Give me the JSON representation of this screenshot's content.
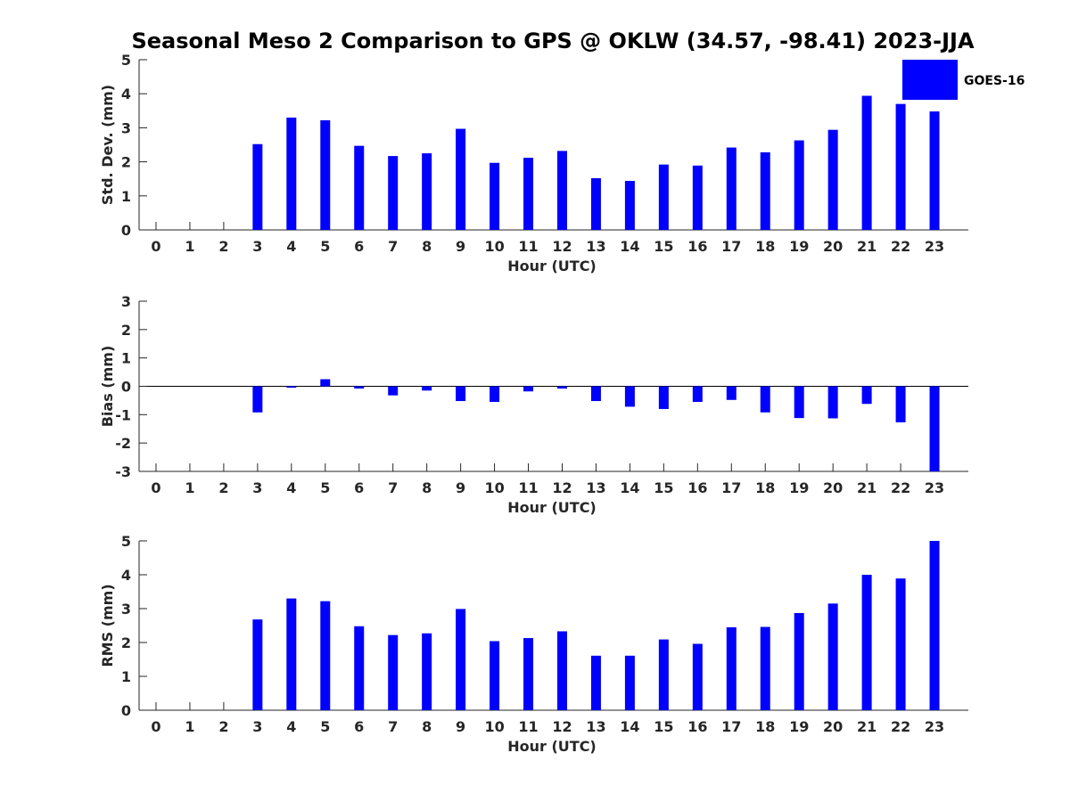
{
  "title": "Seasonal Meso 2 Comparison to GPS @ OKLW (34.57, -98.41) 2023-JJA",
  "legend": {
    "label": "GOES-16",
    "color": "#0000ff"
  },
  "chart_data": [
    {
      "type": "bar",
      "xlabel": "Hour (UTC)",
      "ylabel": "Std. Dev. (mm)",
      "ylim": [
        0,
        5
      ],
      "yticks": [
        0,
        1,
        2,
        3,
        4,
        5
      ],
      "categories": [
        "0",
        "1",
        "2",
        "3",
        "4",
        "5",
        "6",
        "7",
        "8",
        "9",
        "10",
        "11",
        "12",
        "13",
        "14",
        "15",
        "16",
        "17",
        "18",
        "19",
        "20",
        "21",
        "22",
        "23"
      ],
      "series": [
        {
          "name": "GOES-16",
          "color": "#0000ff",
          "values": [
            null,
            null,
            null,
            2.52,
            3.3,
            3.22,
            2.47,
            2.17,
            2.25,
            2.97,
            1.97,
            2.12,
            2.32,
            1.52,
            1.44,
            1.92,
            1.89,
            2.42,
            2.28,
            2.63,
            2.94,
            3.94,
            3.7,
            3.48
          ]
        }
      ],
      "grid": false,
      "legend_position": "top-right"
    },
    {
      "type": "bar",
      "xlabel": "Hour (UTC)",
      "ylabel": "Bias (mm)",
      "ylim": [
        -3,
        3
      ],
      "yticks": [
        -3,
        -2,
        -1,
        0,
        1,
        2,
        3
      ],
      "categories": [
        "0",
        "1",
        "2",
        "3",
        "4",
        "5",
        "6",
        "7",
        "8",
        "9",
        "10",
        "11",
        "12",
        "13",
        "14",
        "15",
        "16",
        "17",
        "18",
        "19",
        "20",
        "21",
        "22",
        "23"
      ],
      "series": [
        {
          "name": "GOES-16",
          "color": "#0000ff",
          "values": [
            null,
            null,
            null,
            -0.92,
            -0.05,
            0.25,
            -0.08,
            -0.32,
            -0.15,
            -0.52,
            -0.55,
            -0.18,
            -0.08,
            -0.52,
            -0.72,
            -0.8,
            -0.55,
            -0.48,
            -0.92,
            -1.12,
            -1.13,
            -0.62,
            -1.27,
            -3.0
          ]
        }
      ],
      "grid": false
    },
    {
      "type": "bar",
      "xlabel": "Hour (UTC)",
      "ylabel": "RMS (mm)",
      "ylim": [
        0,
        5
      ],
      "yticks": [
        0,
        1,
        2,
        3,
        4,
        5
      ],
      "categories": [
        "0",
        "1",
        "2",
        "3",
        "4",
        "5",
        "6",
        "7",
        "8",
        "9",
        "10",
        "11",
        "12",
        "13",
        "14",
        "15",
        "16",
        "17",
        "18",
        "19",
        "20",
        "21",
        "22",
        "23"
      ],
      "series": [
        {
          "name": "GOES-16",
          "color": "#0000ff",
          "values": [
            null,
            null,
            null,
            2.68,
            3.3,
            3.22,
            2.48,
            2.22,
            2.27,
            2.99,
            2.04,
            2.13,
            2.33,
            1.61,
            1.61,
            2.09,
            1.96,
            2.45,
            2.46,
            2.87,
            3.15,
            4.0,
            3.89,
            5.0
          ]
        }
      ],
      "grid": false
    }
  ]
}
